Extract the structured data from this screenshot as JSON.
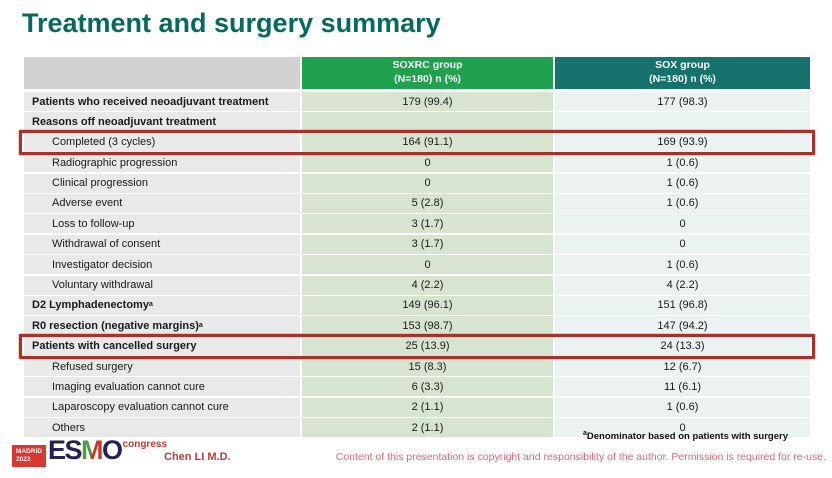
{
  "title": "Treatment and surgery summary",
  "table": {
    "columns": [
      {
        "name": "SOXRC group",
        "sub": "(N=180)  n (%)"
      },
      {
        "name": "SOX group",
        "sub": "(N=180)  n (%)"
      }
    ],
    "rows": [
      {
        "label": "Patients who received neoadjuvant treatment",
        "bold": true,
        "indent": false,
        "highlight": false,
        "soxrc": "179 (99.4)",
        "sox": "177 (98.3)"
      },
      {
        "label": "Reasons off neoadjuvant treatment",
        "bold": true,
        "indent": false,
        "highlight": false,
        "soxrc": "",
        "sox": ""
      },
      {
        "label": "Completed (3 cycles)",
        "bold": false,
        "indent": true,
        "highlight": true,
        "soxrc": "164 (91.1)",
        "sox": "169 (93.9)"
      },
      {
        "label": "Radiographic progression",
        "bold": false,
        "indent": true,
        "highlight": false,
        "soxrc": "0",
        "sox": "1 (0.6)"
      },
      {
        "label": "Clinical progression",
        "bold": false,
        "indent": true,
        "highlight": false,
        "soxrc": "0",
        "sox": "1 (0.6)"
      },
      {
        "label": "Adverse event",
        "bold": false,
        "indent": true,
        "highlight": false,
        "soxrc": "5 (2.8)",
        "sox": "1 (0.6)"
      },
      {
        "label": "Loss to follow-up",
        "bold": false,
        "indent": true,
        "highlight": false,
        "soxrc": "3 (1.7)",
        "sox": "0"
      },
      {
        "label": "Withdrawal of consent",
        "bold": false,
        "indent": true,
        "highlight": false,
        "soxrc": "3 (1.7)",
        "sox": "0"
      },
      {
        "label": "Investigator decision",
        "bold": false,
        "indent": true,
        "highlight": false,
        "soxrc": "0",
        "sox": "1 (0.6)"
      },
      {
        "label": "Voluntary withdrawal",
        "bold": false,
        "indent": true,
        "highlight": false,
        "soxrc": "4 (2.2)",
        "sox": "4 (2.2)"
      },
      {
        "label": "D2 Lymphadenectomy",
        "sup": "a",
        "bold": true,
        "indent": false,
        "highlight": false,
        "soxrc": "149 (96.1)",
        "sox": "151 (96.8)"
      },
      {
        "label": "R0 resection (negative margins)",
        "sup": "a",
        "bold": true,
        "indent": false,
        "highlight": false,
        "soxrc": "153 (98.7)",
        "sox": "147 (94.2)"
      },
      {
        "label": "Patients with cancelled surgery",
        "bold": true,
        "indent": false,
        "highlight": true,
        "soxrc": "25 (13.9)",
        "sox": "24 (13.3)"
      },
      {
        "label": "Refused surgery",
        "bold": false,
        "indent": true,
        "highlight": false,
        "soxrc": "15 (8.3)",
        "sox": "12 (6.7)"
      },
      {
        "label": "Imaging evaluation cannot cure",
        "bold": false,
        "indent": true,
        "highlight": false,
        "soxrc": "6 (3.3)",
        "sox": "11 (6.1)"
      },
      {
        "label": "Laparoscopy evaluation cannot cure",
        "bold": false,
        "indent": true,
        "highlight": false,
        "soxrc": "2 (1.1)",
        "sox": "1 (0.6)"
      },
      {
        "label": "Others",
        "bold": false,
        "indent": true,
        "highlight": false,
        "soxrc": "2 (1.1)",
        "sox": "0"
      }
    ]
  },
  "colors": {
    "title": "#056a5c",
    "soxrc_header": "#1fa14f",
    "sox_header": "#16726c",
    "soxrc_cell": "#d7e4d0",
    "sox_cell": "#eaf3f1",
    "label_cell": "#e9e9e9",
    "highlight_border": "#a5322b"
  },
  "footer": {
    "logo": {
      "city": "MADRID",
      "year": "2023",
      "letters": [
        "E",
        "S",
        "M",
        "O"
      ],
      "congress": "congress"
    },
    "author": "Chen LI M.D.",
    "footnote_marker": "a",
    "footnote": "Denominator based on patients with surgery",
    "copyright": "Content of this presentation is copyright and responsibility of the author. Permission is required for re-use."
  }
}
